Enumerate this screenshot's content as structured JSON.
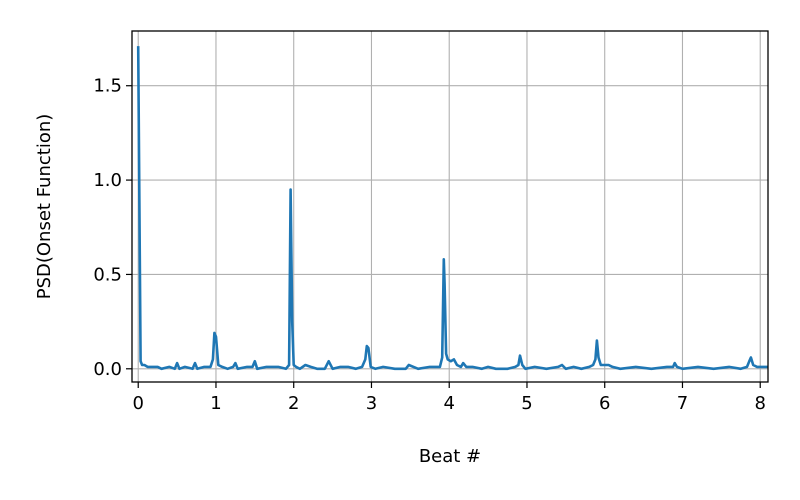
{
  "chart_data": {
    "type": "line",
    "title": "",
    "xlabel": "Beat #",
    "ylabel": "PSD(Onset Function)",
    "xlim": [
      -0.08,
      8.1
    ],
    "ylim": [
      -0.07,
      1.79
    ],
    "grid": true,
    "line_color": "#1f77b4",
    "x_ticks": [
      {
        "value": 0,
        "label": "0"
      },
      {
        "value": 1,
        "label": "1"
      },
      {
        "value": 2,
        "label": "2"
      },
      {
        "value": 3,
        "label": "3"
      },
      {
        "value": 4,
        "label": "4"
      },
      {
        "value": 5,
        "label": "5"
      },
      {
        "value": 6,
        "label": "6"
      },
      {
        "value": 7,
        "label": "7"
      },
      {
        "value": 8,
        "label": "8"
      }
    ],
    "y_ticks": [
      {
        "value": 0.0,
        "label": "0.0"
      },
      {
        "value": 0.5,
        "label": "0.5"
      },
      {
        "value": 1.0,
        "label": "1.0"
      },
      {
        "value": 1.5,
        "label": "1.5"
      }
    ],
    "series": [
      {
        "x": [
          0.0,
          0.03,
          0.05,
          0.08,
          0.12,
          0.18,
          0.25,
          0.3,
          0.4,
          0.47,
          0.5,
          0.53,
          0.6,
          0.7,
          0.73,
          0.76,
          0.85,
          0.93,
          0.96,
          0.98,
          1.0,
          1.03,
          1.08,
          1.15,
          1.22,
          1.25,
          1.28,
          1.4,
          1.47,
          1.5,
          1.53,
          1.65,
          1.8,
          1.9,
          1.94,
          1.96,
          1.98,
          2.0,
          2.03,
          2.08,
          2.15,
          2.22,
          2.3,
          2.4,
          2.45,
          2.5,
          2.6,
          2.7,
          2.8,
          2.88,
          2.92,
          2.94,
          2.96,
          2.99,
          3.05,
          3.15,
          3.3,
          3.44,
          3.48,
          3.6,
          3.75,
          3.88,
          3.91,
          3.93,
          3.94,
          3.96,
          3.98,
          4.02,
          4.06,
          4.1,
          4.15,
          4.18,
          4.22,
          4.3,
          4.42,
          4.5,
          4.6,
          4.75,
          4.85,
          4.89,
          4.91,
          4.94,
          4.98,
          5.1,
          5.25,
          5.4,
          5.45,
          5.5,
          5.6,
          5.7,
          5.8,
          5.85,
          5.88,
          5.9,
          5.92,
          5.95,
          6.0,
          6.05,
          6.1,
          6.2,
          6.4,
          6.6,
          6.8,
          6.88,
          6.9,
          6.93,
          7.0,
          7.2,
          7.4,
          7.6,
          7.75,
          7.83,
          7.86,
          7.88,
          7.91,
          7.96,
          8.05,
          8.1
        ],
        "y": [
          1.71,
          0.04,
          0.02,
          0.02,
          0.01,
          0.01,
          0.01,
          0.0,
          0.01,
          0.0,
          0.03,
          0.0,
          0.01,
          0.0,
          0.03,
          0.0,
          0.01,
          0.01,
          0.05,
          0.19,
          0.17,
          0.02,
          0.01,
          0.0,
          0.01,
          0.03,
          0.0,
          0.01,
          0.01,
          0.04,
          0.0,
          0.01,
          0.01,
          0.0,
          0.02,
          0.95,
          0.25,
          0.02,
          0.01,
          0.0,
          0.02,
          0.01,
          0.0,
          0.0,
          0.04,
          0.0,
          0.01,
          0.01,
          0.0,
          0.01,
          0.05,
          0.12,
          0.11,
          0.01,
          0.0,
          0.01,
          0.0,
          0.0,
          0.02,
          0.0,
          0.01,
          0.01,
          0.06,
          0.58,
          0.45,
          0.08,
          0.05,
          0.04,
          0.05,
          0.02,
          0.01,
          0.03,
          0.01,
          0.01,
          0.0,
          0.01,
          0.0,
          0.0,
          0.01,
          0.02,
          0.07,
          0.02,
          0.0,
          0.01,
          0.0,
          0.01,
          0.02,
          0.0,
          0.01,
          0.0,
          0.01,
          0.02,
          0.05,
          0.15,
          0.06,
          0.02,
          0.02,
          0.02,
          0.01,
          0.0,
          0.01,
          0.0,
          0.01,
          0.01,
          0.03,
          0.01,
          0.0,
          0.01,
          0.0,
          0.01,
          0.0,
          0.01,
          0.04,
          0.06,
          0.02,
          0.01,
          0.01,
          0.01
        ]
      }
    ]
  }
}
